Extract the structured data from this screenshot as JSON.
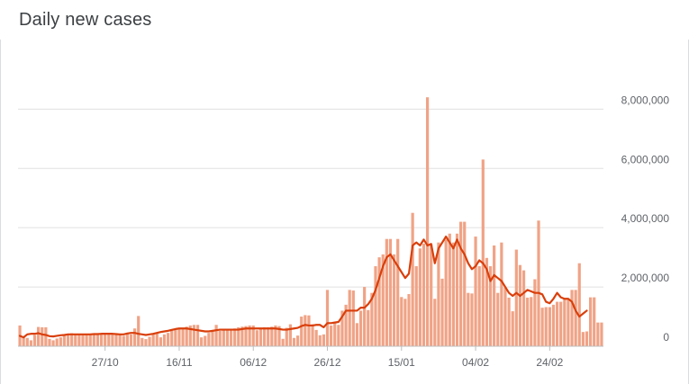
{
  "title": "Daily new cases",
  "colors": {
    "bar": "#f0a386",
    "line": "#d93f0b",
    "grid": "#e0e0e0",
    "text": "#5f6368",
    "title": "#3c4043"
  },
  "chart_data": {
    "type": "bar",
    "title": "Daily new cases",
    "xlabel": "",
    "ylabel": "",
    "ylim": [
      0,
      8800000
    ],
    "grid": true,
    "legend": "none",
    "y_ticks": [
      {
        "value": 0,
        "label": "0"
      },
      {
        "value": 2000000,
        "label": "2,000,000"
      },
      {
        "value": 4000000,
        "label": "4,000,000"
      },
      {
        "value": 6000000,
        "label": "6,000,000"
      },
      {
        "value": 8000000,
        "label": "8,000,000"
      }
    ],
    "x_ticks": [
      {
        "index": 23,
        "label": "27/10"
      },
      {
        "index": 43,
        "label": "16/11"
      },
      {
        "index": 63,
        "label": "06/12"
      },
      {
        "index": 83,
        "label": "26/12"
      },
      {
        "index": 103,
        "label": "15/01"
      },
      {
        "index": 123,
        "label": "04/02"
      },
      {
        "index": 143,
        "label": "24/02"
      }
    ],
    "series": [
      {
        "type": "bar",
        "values": [
          700000,
          320000,
          280000,
          200000,
          380000,
          650000,
          640000,
          640000,
          250000,
          200000,
          260000,
          300000,
          380000,
          400000,
          440000,
          420000,
          410000,
          390000,
          390000,
          420000,
          400000,
          380000,
          420000,
          420000,
          400000,
          420000,
          400000,
          390000,
          350000,
          420000,
          400000,
          600000,
          1020000,
          280000,
          240000,
          320000,
          420000,
          430000,
          300000,
          400000,
          450000,
          520000,
          560000,
          600000,
          620000,
          660000,
          700000,
          720000,
          720000,
          300000,
          350000,
          450000,
          500000,
          720000,
          520000,
          540000,
          560000,
          580000,
          600000,
          640000,
          660000,
          680000,
          700000,
          700000,
          540000,
          600000,
          640000,
          640000,
          660000,
          700000,
          680000,
          250000,
          620000,
          740000,
          280000,
          360000,
          1000000,
          1050000,
          1040000,
          740000,
          550000,
          370000,
          400000,
          1900000,
          700000,
          820000,
          720000,
          1200000,
          1400000,
          1900000,
          1880000,
          780000,
          1200000,
          2000000,
          1220000,
          1800000,
          2700000,
          3000000,
          3100000,
          3620000,
          3620000,
          3100000,
          3620000,
          1660000,
          1600000,
          1760000,
          4500000,
          2700000,
          3300000,
          3460000,
          8400000,
          3440000,
          1600000,
          3500000,
          2280000,
          3600000,
          3800000,
          3500000,
          3800000,
          4200000,
          4200000,
          1800000,
          1780000,
          3700000,
          2700000,
          6300000,
          2980000,
          2700000,
          3400000,
          1800000,
          3500000,
          1980000,
          1640000,
          1180000,
          3260000,
          2740000,
          2560000,
          1640000,
          1660000,
          2260000,
          4240000,
          1300000,
          1320000,
          1320000,
          1400000,
          1500000,
          1500000,
          1600000,
          1600000,
          1900000,
          1900000,
          2800000,
          480000,
          500000,
          1650000,
          1650000,
          800000,
          800000
        ]
      },
      {
        "type": "line",
        "name": "",
        "values": [
          350000,
          300000,
          400000,
          420000,
          420000,
          440000,
          400000,
          380000,
          340000,
          330000,
          350000,
          370000,
          380000,
          400000,
          400000,
          400000,
          400000,
          400000,
          400000,
          400000,
          410000,
          410000,
          420000,
          420000,
          420000,
          420000,
          410000,
          400000,
          400000,
          430000,
          450000,
          450000,
          420000,
          400000,
          380000,
          400000,
          420000,
          450000,
          480000,
          500000,
          520000,
          550000,
          580000,
          600000,
          600000,
          600000,
          580000,
          560000,
          540000,
          520000,
          500000,
          500000,
          520000,
          540000,
          560000,
          560000,
          560000,
          560000,
          560000,
          560000,
          580000,
          600000,
          600000,
          600000,
          600000,
          600000,
          600000,
          600000,
          600000,
          600000,
          580000,
          560000,
          560000,
          580000,
          600000,
          620000,
          680000,
          720000,
          700000,
          700000,
          720000,
          720000,
          640000,
          780000,
          780000,
          800000,
          820000,
          1000000,
          1200000,
          1200000,
          1200000,
          1200000,
          1300000,
          1300000,
          1420000,
          1600000,
          1900000,
          2300000,
          2700000,
          3000000,
          3100000,
          2900000,
          2700000,
          2500000,
          2300000,
          2450000,
          3400000,
          3500000,
          3400000,
          3600000,
          3400000,
          3450000,
          2800000,
          3300000,
          3500000,
          3700000,
          3500000,
          3300000,
          3600000,
          3300000,
          3100000,
          2800000,
          2600000,
          2700000,
          2900000,
          2800000,
          2600000,
          2200000,
          2400000,
          2300000,
          2200000,
          2000000,
          1800000,
          1700000,
          1800000,
          1700000,
          1800000,
          1900000,
          1850000,
          1800000,
          1800000,
          1750000,
          1500000,
          1450000,
          1600000,
          1800000,
          1650000,
          1600000,
          1600000,
          1500000,
          1200000,
          1000000,
          1100000,
          1200000
        ]
      }
    ]
  }
}
